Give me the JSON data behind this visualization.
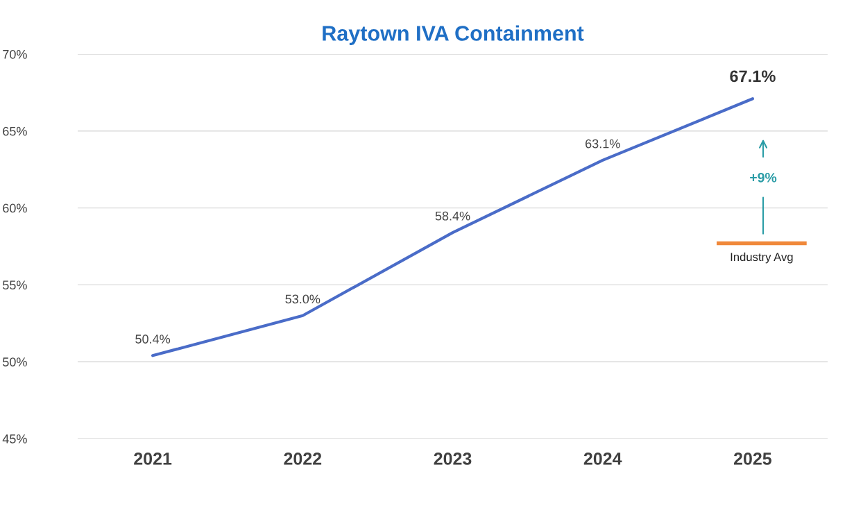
{
  "chart_data": {
    "type": "line",
    "title": "Raytown IVA Containment",
    "categories": [
      "2021",
      "2022",
      "2023",
      "2024",
      "2025"
    ],
    "series": [
      {
        "color": "#4a6cc8",
        "values": [
          50.4,
          53.0,
          58.4,
          63.1,
          67.1
        ],
        "value_labels": [
          "50.4%",
          "53.0%",
          "58.4%",
          "63.1%",
          "67.1%"
        ]
      }
    ],
    "ylim": [
      45,
      70
    ],
    "yticks": [
      {
        "value": 45,
        "label": "45%"
      },
      {
        "value": 50,
        "label": "50%"
      },
      {
        "value": 55,
        "label": "55%"
      },
      {
        "value": 60,
        "label": "60%"
      },
      {
        "value": 65,
        "label": "65%"
      },
      {
        "value": 70,
        "label": "70%"
      }
    ],
    "grid": "y",
    "ref_lines": [
      {
        "axis": "y",
        "value": 57.7,
        "label": "Industry Avg",
        "color": "#f0883a"
      }
    ],
    "annotations": [
      "+9%"
    ]
  }
}
